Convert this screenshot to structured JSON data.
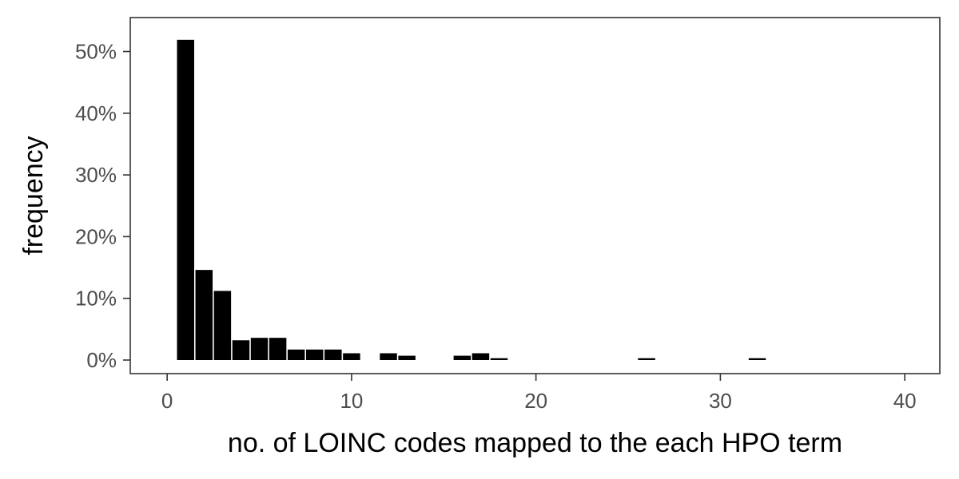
{
  "chart_data": {
    "type": "bar",
    "title": "",
    "xlabel": "no. of LOINC codes mapped to the each HPO term",
    "ylabel": "frequency",
    "x_ticks": [
      0,
      10,
      20,
      30,
      40
    ],
    "x_tick_labels": [
      "0",
      "10",
      "20",
      "30",
      "40"
    ],
    "y_ticks": [
      0,
      0.1,
      0.2,
      0.3,
      0.4,
      0.5
    ],
    "y_tick_labels": [
      "0%",
      "10%",
      "20%",
      "30%",
      "40%",
      "50%"
    ],
    "xlim": [
      -2,
      41.9
    ],
    "ylim": [
      -0.022,
      0.555
    ],
    "grid": false,
    "legend": "none",
    "bar_color": "#000000",
    "x": [
      1,
      2,
      3,
      4,
      5,
      6,
      7,
      8,
      9,
      10,
      12,
      13,
      16,
      17,
      18,
      26,
      32
    ],
    "values": [
      0.519,
      0.146,
      0.112,
      0.032,
      0.036,
      0.036,
      0.017,
      0.017,
      0.017,
      0.011,
      0.011,
      0.007,
      0.007,
      0.011,
      0.003,
      0.003,
      0.003
    ]
  }
}
